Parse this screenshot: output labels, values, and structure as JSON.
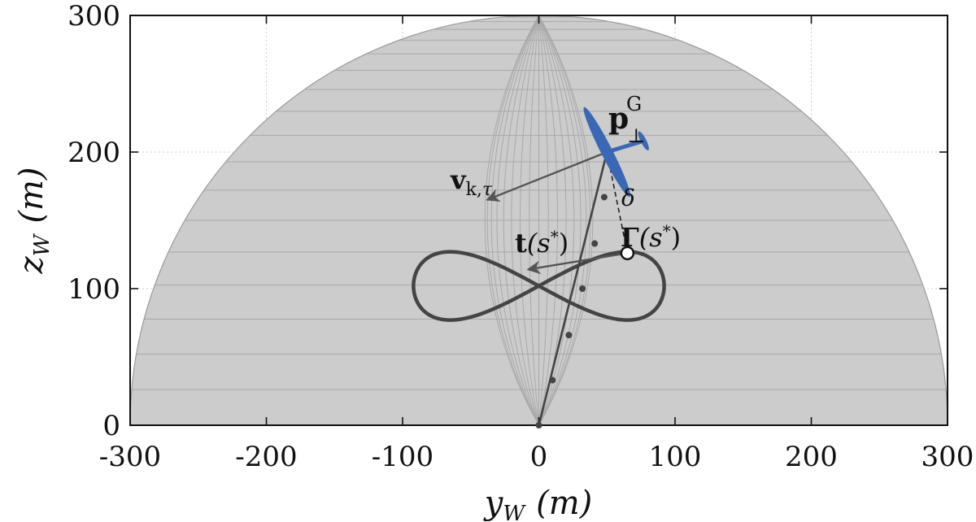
{
  "chart_data": {
    "type": "line",
    "title": "",
    "xlabel": {
      "main": "y",
      "sub": "W",
      "unit": "(m)"
    },
    "ylabel": {
      "main": "z",
      "sub": "W",
      "unit": "(m)"
    },
    "xlim": [
      -300,
      300
    ],
    "ylim": [
      0,
      300
    ],
    "xticks": [
      -300,
      -200,
      -100,
      0,
      100,
      200,
      300
    ],
    "xtick_labels": [
      "-300",
      "-200",
      "-100",
      "0",
      "100",
      "200",
      "300"
    ],
    "yticks": [
      0,
      100,
      200,
      300
    ],
    "ytick_labels": [
      "0",
      "100",
      "200",
      "300"
    ],
    "grid": true,
    "hemisphere": {
      "radius": 300,
      "color": "#cccccc",
      "meridian_color": "#a9a9a9"
    },
    "figure_eight": {
      "name": "Figure-eight path",
      "center": [
        0,
        102
      ],
      "half_width": 92,
      "half_height": 25,
      "color": "#444444"
    },
    "tether": {
      "color": "#444444",
      "points": [
        [
          0,
          0
        ],
        [
          50,
          200
        ]
      ],
      "markers": [
        [
          0,
          0
        ],
        [
          10,
          33
        ],
        [
          22,
          66
        ],
        [
          32,
          100
        ],
        [
          41,
          133
        ],
        [
          48,
          167
        ]
      ]
    },
    "closest_point": {
      "y": 65,
      "z": 126
    },
    "kite": {
      "y": 50,
      "z": 200,
      "color": "#3b68b5"
    },
    "vectors": {
      "velocity": {
        "from": [
          50,
          200
        ],
        "to": [
          -38,
          165
        ],
        "color": "#555555"
      },
      "tangent": {
        "from": [
          65,
          126
        ],
        "to": [
          -8,
          114
        ],
        "color": "#555555"
      }
    },
    "annotations": {
      "p_main": "p",
      "p_sup": "G",
      "p_sub": "⊥",
      "v_main": "v",
      "v_sub": "k,",
      "v_sub2": "τ",
      "t_main": "t",
      "t_arg": "(s",
      "t_star": "*",
      "t_close": ")",
      "gamma_main": "Γ",
      "gamma_arg": "(s",
      "gamma_star": "*",
      "gamma_close": ")",
      "delta": "δ"
    }
  }
}
